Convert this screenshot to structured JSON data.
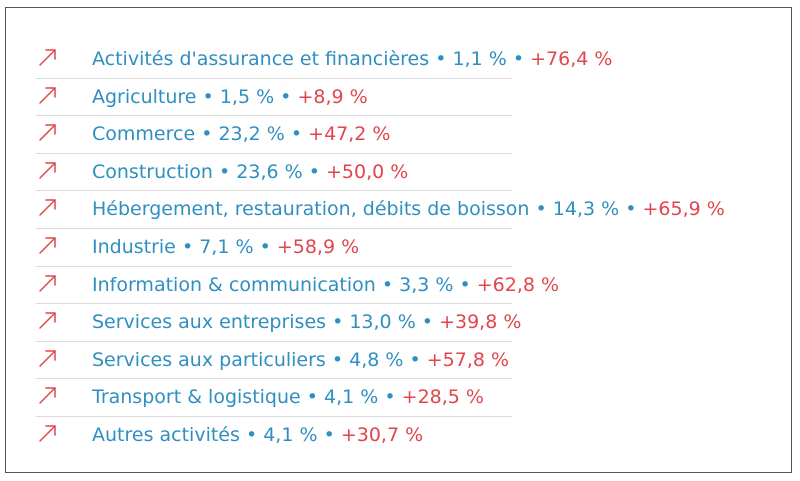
{
  "colors": {
    "blue": "#2f8fc0",
    "red": "#e0464b",
    "arrow": "#e0464b"
  },
  "icon": "arrow-up-right-icon",
  "separator": "•",
  "rows": [
    {
      "label": "Activités d'assurance et financières",
      "share": "1,1 %",
      "growth": "+76,4 %"
    },
    {
      "label": "Agriculture",
      "share": "1,5 %",
      "growth": "+8,9 %"
    },
    {
      "label": "Commerce",
      "share": "23,2 %",
      "growth": "+47,2 %"
    },
    {
      "label": "Construction",
      "share": "23,6 %",
      "growth": "+50,0 %"
    },
    {
      "label": "Hébergement, restauration, débits de boisson",
      "share": "14,3 %",
      "growth": "+65,9 %"
    },
    {
      "label": "Industrie",
      "share": "7,1 %",
      "growth": "+58,9 %"
    },
    {
      "label": "Information & communication",
      "share": "3,3 %",
      "growth": "+62,8 %"
    },
    {
      "label": "Services aux entreprises",
      "share": "13,0 %",
      "growth": "+39,8 %"
    },
    {
      "label": "Services aux particuliers",
      "share": "4,8 %",
      "growth": "+57,8 %"
    },
    {
      "label": "Transport & logistique",
      "share": "4,1 %",
      "growth": "+28,5 %"
    },
    {
      "label": "Autres activités",
      "share": "4,1 %",
      "growth": "+30,7 %"
    }
  ]
}
